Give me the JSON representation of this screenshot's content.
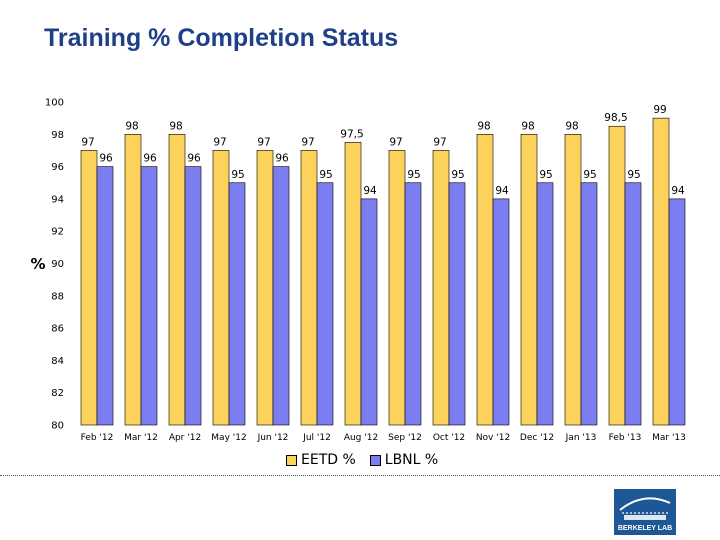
{
  "page": {
    "title": "Training % Completion Status"
  },
  "chart_data": {
    "type": "bar",
    "title": "Training % Completion Status",
    "ylabel": "%",
    "xlabel": "",
    "ylim": [
      80,
      100
    ],
    "yticks": [
      80,
      82,
      84,
      86,
      88,
      90,
      92,
      94,
      96,
      98,
      100
    ],
    "grid": false,
    "legend": "bottom",
    "categories": [
      "Feb '12",
      "Mar '12",
      "Apr '12",
      "May '12",
      "Jun '12",
      "Jul '12",
      "Aug '12",
      "Sep '12",
      "Oct '12",
      "Nov '12",
      "Dec '12",
      "Jan '13",
      "Feb '13",
      "Mar '13"
    ],
    "series": [
      {
        "name": "EETD %",
        "color": "#fcd25a",
        "values": [
          97,
          98,
          98,
          97,
          97,
          97,
          97.5,
          97,
          97,
          98,
          98,
          98,
          98.5,
          99
        ],
        "labels": [
          "97",
          "98",
          "98",
          "97",
          "97",
          "97",
          "97,5",
          "97",
          "97",
          "98",
          "98",
          "98",
          "98,5",
          "99"
        ]
      },
      {
        "name": "LBNL %",
        "color": "#7b7df0",
        "values": [
          96,
          96,
          96,
          95,
          96,
          95,
          94,
          95,
          95,
          94,
          95,
          95,
          95,
          94
        ],
        "labels": [
          "96",
          "96",
          "96",
          "95",
          "96",
          "95",
          "94",
          "95",
          "95",
          "94",
          "95",
          "95",
          "95",
          "94"
        ]
      }
    ]
  },
  "logo": {
    "text": "BERKELEY LAB",
    "icon": "berkeley-lab-logo-icon"
  }
}
